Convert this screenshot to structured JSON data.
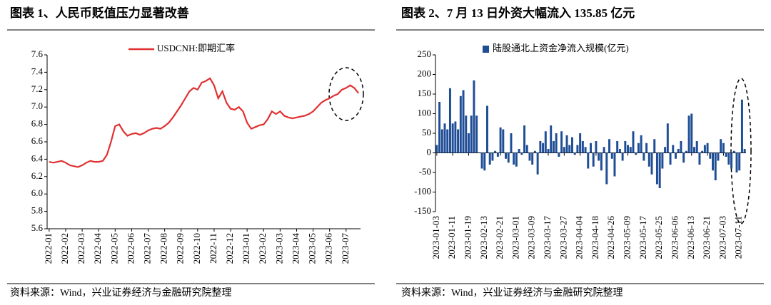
{
  "chart_data": [
    {
      "type": "line",
      "title": "图表 1、人民币贬值压力显著改善",
      "source": "资料来源：Wind，兴业证券经济与金融研究院整理",
      "categories": [
        "2022-01",
        null,
        null,
        null,
        "2022-02",
        null,
        null,
        null,
        "2022-03",
        null,
        null,
        null,
        "2022-04",
        null,
        null,
        null,
        "2022-05",
        null,
        null,
        null,
        "2022-06",
        null,
        null,
        null,
        "2022-07",
        null,
        null,
        null,
        "2022-08",
        null,
        null,
        null,
        "2022-09",
        null,
        null,
        null,
        "2022-10",
        null,
        null,
        null,
        "2022-11",
        null,
        null,
        null,
        "2022-12",
        null,
        null,
        null,
        "2023-01",
        null,
        null,
        null,
        "2023-02",
        null,
        null,
        null,
        "2023-03",
        null,
        null,
        null,
        "2023-04",
        null,
        null,
        null,
        "2023-05",
        null,
        null,
        null,
        "2023-06",
        null,
        null,
        null,
        "2023-07",
        null,
        null,
        null
      ],
      "series": [
        {
          "name": "USDCNH:即期汇率",
          "color": "#e03030",
          "values": [
            6.37,
            6.36,
            6.37,
            6.38,
            6.36,
            6.33,
            6.32,
            6.31,
            6.33,
            6.36,
            6.38,
            6.37,
            6.37,
            6.38,
            6.45,
            6.6,
            6.78,
            6.8,
            6.72,
            6.67,
            6.69,
            6.7,
            6.68,
            6.7,
            6.73,
            6.75,
            6.76,
            6.75,
            6.78,
            6.82,
            6.88,
            6.95,
            7.02,
            7.1,
            7.18,
            7.22,
            7.2,
            7.28,
            7.3,
            7.33,
            7.25,
            7.1,
            7.18,
            7.05,
            6.98,
            6.97,
            7.0,
            6.95,
            6.82,
            6.75,
            6.77,
            6.79,
            6.8,
            6.86,
            6.95,
            6.92,
            6.95,
            6.9,
            6.88,
            6.87,
            6.88,
            6.89,
            6.9,
            6.92,
            6.95,
            7.0,
            7.05,
            7.08,
            7.1,
            7.13,
            7.15,
            7.2,
            7.22,
            7.25,
            7.22,
            7.16
          ]
        }
      ],
      "ylim": [
        5.6,
        7.6
      ],
      "yticks": [
        5.6,
        5.8,
        {
          "value": 6,
          "label": "6.0"
        },
        6.2,
        6.4,
        6.6,
        6.8,
        {
          "value": 7,
          "label": "7.0"
        },
        7.2,
        7.4,
        7.6
      ],
      "grid": false
    },
    {
      "type": "bar",
      "title": "图表 2、7 月 13 日外资大幅流入 135.85 亿元",
      "source": "资料来源：Wind，兴业证券经济与金融研究院整理",
      "categories": [
        "2023-01-03",
        null,
        null,
        null,
        null,
        null,
        "2023-01-11",
        null,
        null,
        null,
        null,
        null,
        "2023-01-19",
        null,
        null,
        null,
        null,
        null,
        "2023-02-13",
        null,
        null,
        null,
        null,
        null,
        "2023-02-21",
        null,
        null,
        null,
        null,
        null,
        "2023-03-01",
        null,
        null,
        null,
        null,
        null,
        "2023-03-09",
        null,
        null,
        null,
        null,
        null,
        "2023-03-17",
        null,
        null,
        null,
        null,
        null,
        "2023-03-27",
        null,
        null,
        null,
        null,
        null,
        "2023-04-04",
        null,
        null,
        null,
        null,
        null,
        "2023-04-18",
        null,
        null,
        null,
        null,
        null,
        "2023-04-26",
        null,
        null,
        null,
        null,
        null,
        "2023-05-09",
        null,
        null,
        null,
        null,
        null,
        "2023-05-17",
        null,
        null,
        null,
        null,
        null,
        "2023-05-25",
        null,
        null,
        null,
        null,
        null,
        "2023-06-06",
        null,
        null,
        null,
        null,
        null,
        "2023-06-13",
        null,
        null,
        null,
        null,
        null,
        "2023-06-21",
        null,
        null,
        null,
        null,
        null,
        "2023-07-03",
        null,
        null,
        null,
        null,
        null,
        "2023-07-11",
        null,
        null
      ],
      "series": [
        {
          "name": "陆股通北上资金净流入规模(亿元)",
          "color": "#1f4e96",
          "values": [
            20,
            130,
            60,
            75,
            60,
            165,
            75,
            80,
            60,
            145,
            160,
            95,
            50,
            95,
            185,
            95,
            0,
            -40,
            -45,
            120,
            -30,
            -20,
            5,
            -10,
            65,
            60,
            -15,
            -25,
            50,
            -30,
            -35,
            10,
            -5,
            70,
            20,
            -20,
            -30,
            5,
            -55,
            30,
            25,
            55,
            10,
            70,
            30,
            50,
            -10,
            55,
            15,
            45,
            20,
            40,
            -5,
            20,
            50,
            30,
            15,
            -40,
            25,
            -35,
            30,
            -20,
            -45,
            15,
            -80,
            35,
            -15,
            -60,
            30,
            10,
            -20,
            30,
            20,
            15,
            55,
            -5,
            25,
            45,
            -20,
            25,
            -35,
            -55,
            35,
            -80,
            -90,
            -40,
            15,
            75,
            -30,
            20,
            -15,
            10,
            30,
            -25,
            5,
            95,
            100,
            15,
            30,
            -30,
            5,
            20,
            25,
            -15,
            -45,
            -70,
            -20,
            35,
            25,
            -10,
            -30,
            -40,
            5,
            -50,
            -45,
            135.85,
            10
          ]
        }
      ],
      "ylim": [
        -150,
        250
      ],
      "yticks": [
        -150,
        -100,
        -50,
        0,
        50,
        100,
        150,
        200,
        250
      ],
      "grid": false
    }
  ]
}
